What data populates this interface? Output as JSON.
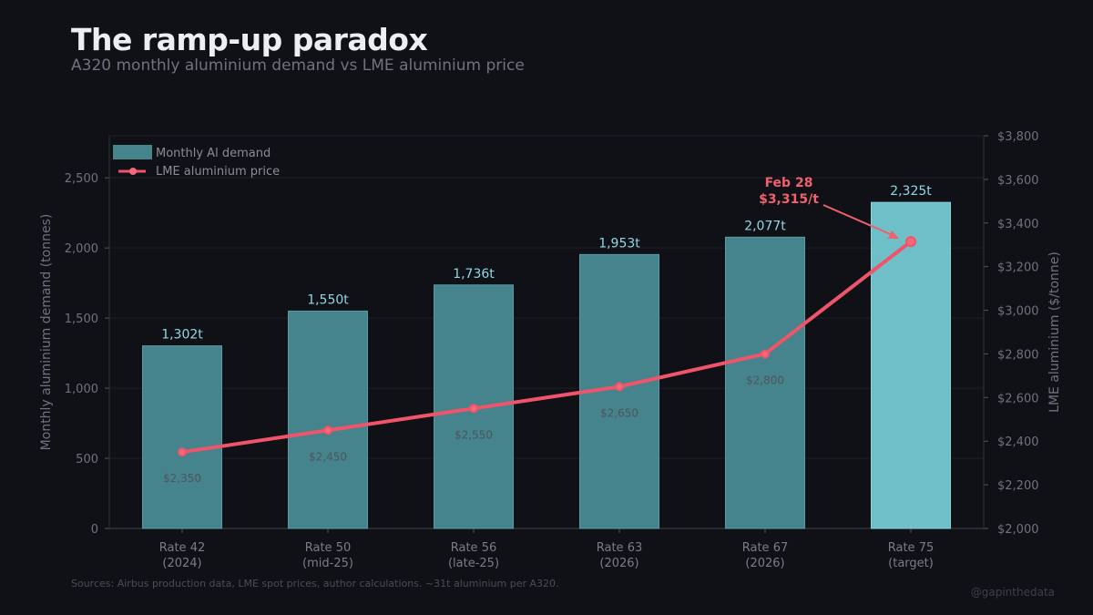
{
  "title": "The ramp-up paradox",
  "subtitle": "A320 monthly aluminium demand vs LME aluminium price",
  "source": "Sources: Airbus production data, LME spot prices, author calculations. ~31t aluminium per A320.",
  "handle": "@gapinthedata",
  "chart_data": {
    "type": "bar+line",
    "categories": [
      [
        "Rate 42",
        "(2024)"
      ],
      [
        "Rate 50",
        "(mid-25)"
      ],
      [
        "Rate 56",
        "(late-25)"
      ],
      [
        "Rate 63",
        "(2026)"
      ],
      [
        "Rate 67",
        "(2026)"
      ],
      [
        "Rate 75",
        "(target)"
      ]
    ],
    "series": [
      {
        "name": "Monthly Al demand",
        "type": "bar",
        "axis": "left",
        "values": [
          1302,
          1550,
          1736,
          1953,
          2077,
          2325
        ],
        "labels": [
          "1,302t",
          "1,550t",
          "1,736t",
          "1,953t",
          "2,077t",
          "2,325t"
        ],
        "color": "#45838d",
        "highlight_color": "#6fbfc9"
      },
      {
        "name": "LME aluminium price",
        "type": "line",
        "axis": "right",
        "values": [
          2350,
          2450,
          2550,
          2650,
          2800,
          3315
        ],
        "labels": [
          "$2,350",
          "$2,450",
          "$2,550",
          "$2,650",
          "$2,800",
          ""
        ],
        "color": "#f0546a"
      }
    ],
    "ylabel_left": "Monthly aluminium demand (tonnes)",
    "ylabel_right": "LME aluminium ($/tonne)",
    "ylim_left": [
      0,
      2800
    ],
    "ylim_right": [
      2000,
      3800
    ],
    "yticks_left": [
      0,
      500,
      1000,
      1500,
      2000,
      2500
    ],
    "yticks_left_labels": [
      "0",
      "500",
      "1,000",
      "1,500",
      "2,000",
      "2,500"
    ],
    "yticks_right": [
      2000,
      2200,
      2400,
      2600,
      2800,
      3000,
      3200,
      3400,
      3600,
      3800
    ],
    "yticks_right_labels": [
      "$2,000",
      "$2,200",
      "$2,400",
      "$2,600",
      "$2,800",
      "$3,000",
      "$3,200",
      "$3,400",
      "$3,600",
      "$3,800"
    ],
    "annotation": {
      "line1": "Feb 28",
      "line2": "$3,315/t",
      "target_index": 5
    },
    "legend": "top-left",
    "grid": true
  }
}
